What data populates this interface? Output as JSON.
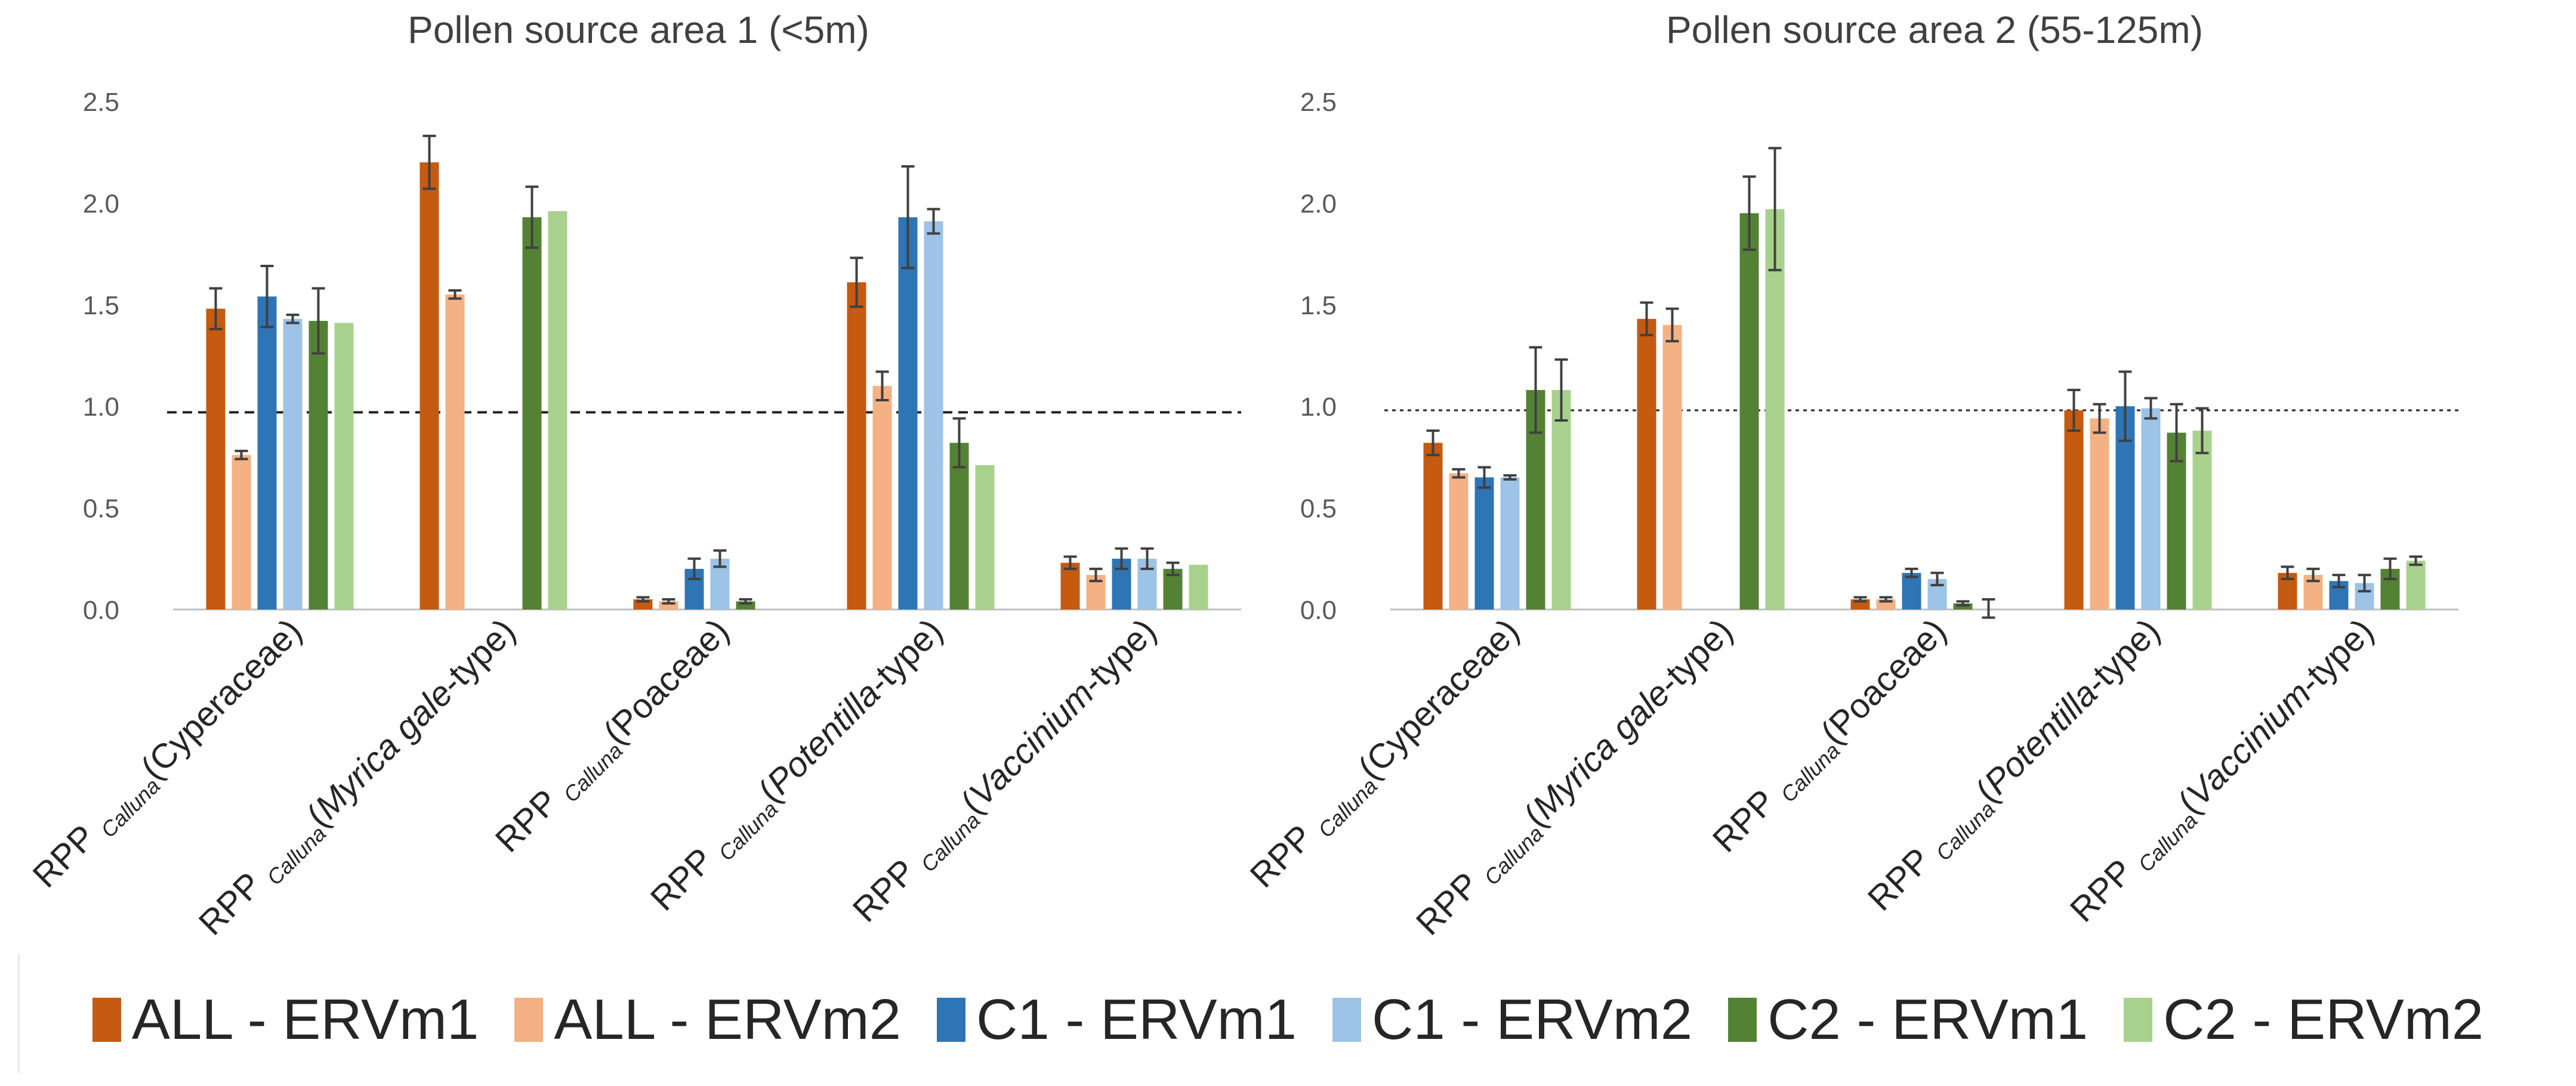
{
  "series_names": [
    "ALL - ERVm1",
    "ALL - ERVm2",
    "C1 - ERVm1",
    "C1 - ERVm2",
    "C2 - ERVm1",
    "C2 - ERVm2"
  ],
  "series_colors": [
    "#C55A11",
    "#F4B183",
    "#2E75B6",
    "#9DC3E6",
    "#548235",
    "#A9D18E"
  ],
  "label_prefix": "RPP",
  "label_sub": "Calluna",
  "chart_data": [
    {
      "type": "bar",
      "title": "Pollen source area 1 (<5m)",
      "ylim": [
        0,
        2.5
      ],
      "yticks": [
        "0.0",
        "0.5",
        "1.0",
        "1.5",
        "2.0",
        "2.5"
      ],
      "reference_line": 0.97,
      "categories": [
        {
          "pre": "(",
          "italic": "",
          "post": "Cyperaceae)"
        },
        {
          "pre": "(",
          "italic": "Myrica gale",
          "post": "-type)"
        },
        {
          "pre": "(",
          "italic": "",
          "post": "Poaceae)"
        },
        {
          "pre": "(",
          "italic": "Potentilla",
          "post": "-type)"
        },
        {
          "pre": "(",
          "italic": "Vaccinium",
          "post": "-type)"
        }
      ],
      "series": [
        {
          "name": "ALL - ERVm1",
          "values": [
            1.48,
            2.2,
            0.05,
            1.61,
            0.23
          ],
          "errors": [
            0.1,
            0.13,
            0.01,
            0.12,
            0.03
          ]
        },
        {
          "name": "ALL - ERVm2",
          "values": [
            0.76,
            1.55,
            0.04,
            1.1,
            0.17
          ],
          "errors": [
            0.02,
            0.02,
            0.01,
            0.07,
            0.03
          ]
        },
        {
          "name": "C1 - ERVm1",
          "values": [
            1.54,
            null,
            0.2,
            1.93,
            0.25
          ],
          "errors": [
            0.15,
            null,
            0.05,
            0.25,
            0.05
          ]
        },
        {
          "name": "C1 - ERVm2",
          "values": [
            1.43,
            null,
            0.25,
            1.91,
            0.25
          ],
          "errors": [
            0.02,
            null,
            0.04,
            0.06,
            0.05
          ]
        },
        {
          "name": "C2 - ERVm1",
          "values": [
            1.42,
            1.93,
            0.04,
            0.82,
            0.2
          ],
          "errors": [
            0.16,
            0.15,
            0.01,
            0.12,
            0.03
          ]
        },
        {
          "name": "C2 - ERVm2",
          "values": [
            1.41,
            1.96,
            null,
            0.71,
            0.22
          ],
          "errors": [
            null,
            null,
            null,
            null,
            null
          ]
        }
      ]
    },
    {
      "type": "bar",
      "title": "Pollen source area 2 (55-125m)",
      "ylim": [
        0,
        2.5
      ],
      "yticks": [
        "0.0",
        "0.5",
        "1.0",
        "1.5",
        "2.0",
        "2.5"
      ],
      "reference_line": 0.98,
      "categories": [
        {
          "pre": "(",
          "italic": "",
          "post": "Cyperaceae)"
        },
        {
          "pre": "(",
          "italic": "Myrica gale",
          "post": "-type)"
        },
        {
          "pre": "(",
          "italic": "",
          "post": "Poaceae)"
        },
        {
          "pre": "(",
          "italic": "Potentilla",
          "post": "-type)"
        },
        {
          "pre": "(",
          "italic": "Vaccinium",
          "post": "-type)"
        }
      ],
      "series": [
        {
          "name": "ALL - ERVm1",
          "values": [
            0.82,
            1.43,
            0.05,
            0.98,
            0.18
          ],
          "errors": [
            0.06,
            0.08,
            0.01,
            0.1,
            0.03
          ]
        },
        {
          "name": "ALL - ERVm2",
          "values": [
            0.67,
            1.4,
            0.05,
            0.94,
            0.17
          ],
          "errors": [
            0.02,
            0.08,
            0.01,
            0.07,
            0.03
          ]
        },
        {
          "name": "C1 - ERVm1",
          "values": [
            0.65,
            null,
            0.18,
            1.0,
            0.14
          ],
          "errors": [
            0.05,
            null,
            0.02,
            0.17,
            0.03
          ]
        },
        {
          "name": "C1 - ERVm2",
          "values": [
            0.65,
            null,
            0.15,
            0.99,
            0.13
          ],
          "errors": [
            0.01,
            null,
            0.03,
            0.05,
            0.04
          ]
        },
        {
          "name": "C2 - ERVm1",
          "values": [
            1.08,
            1.95,
            0.03,
            0.87,
            0.2
          ],
          "errors": [
            0.21,
            0.18,
            0.01,
            0.14,
            0.05
          ]
        },
        {
          "name": "C2 - ERVm2",
          "values": [
            1.08,
            1.97,
            0.0,
            0.88,
            0.24
          ],
          "errors": [
            0.15,
            0.3,
            0.05,
            0.11,
            0.02
          ]
        }
      ]
    }
  ]
}
